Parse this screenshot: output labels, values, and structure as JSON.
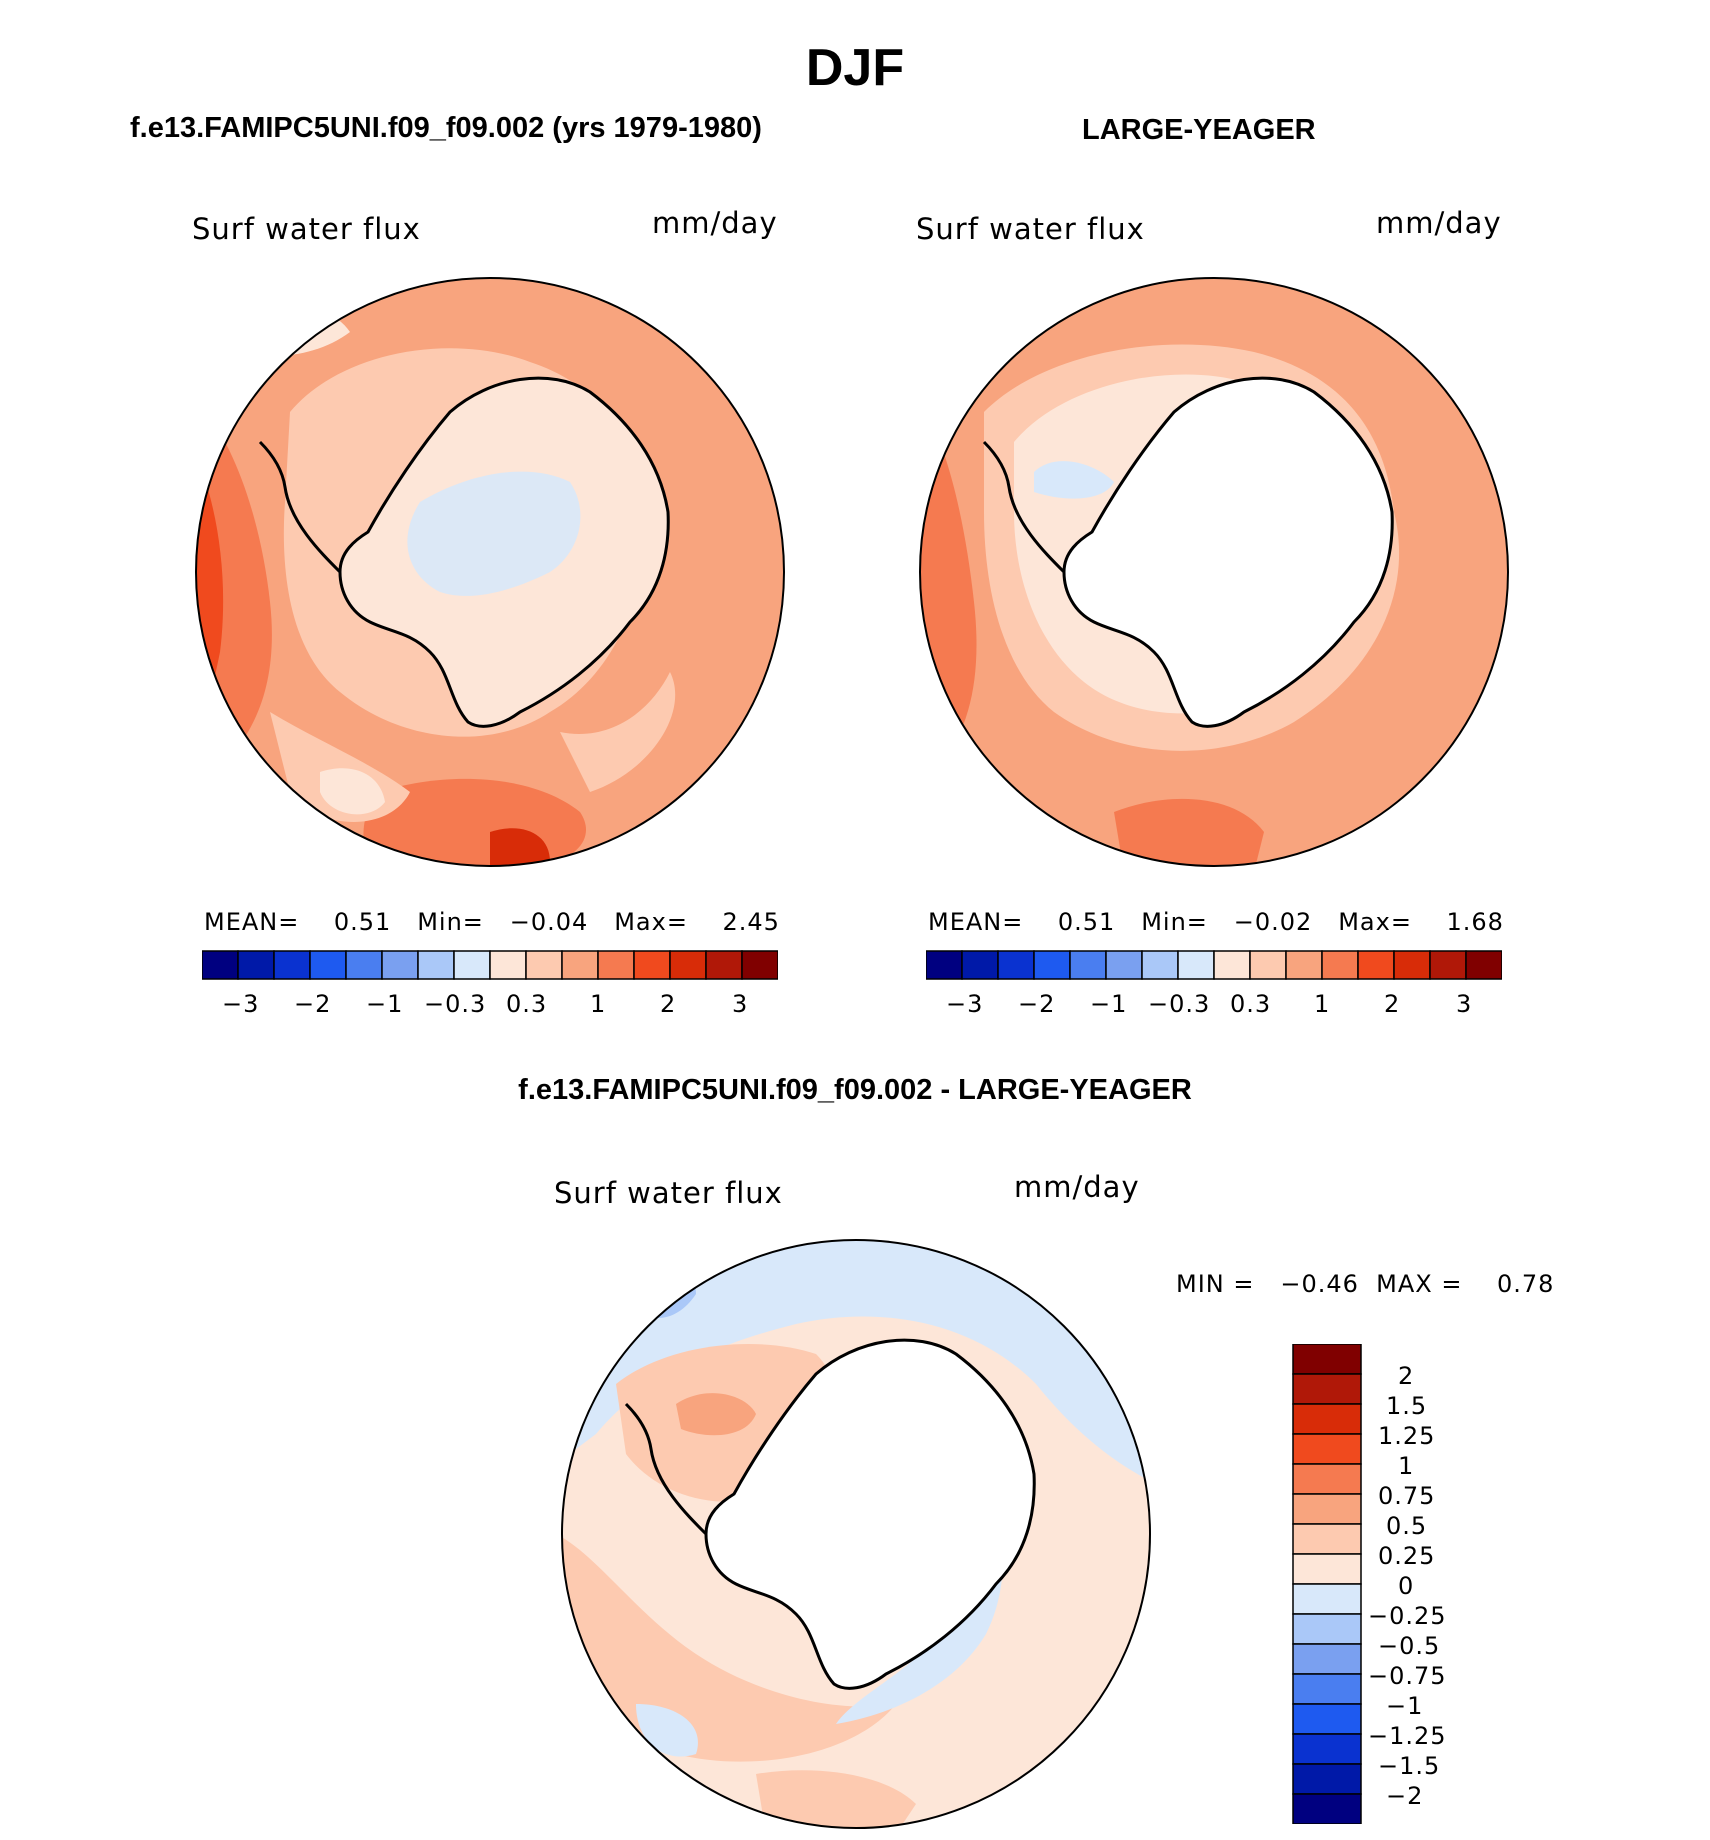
{
  "title": "DJF",
  "colors": {
    "land": "#ffffff",
    "coast": "#000000",
    "scale_abs": [
      "#000080",
      "#0019a8",
      "#0a32d0",
      "#1e5af0",
      "#4a7ef0",
      "#7aa0f0",
      "#aac8f8",
      "#d8e8fa",
      "#fde6d8",
      "#fdcab0",
      "#f8a47e",
      "#f57a50",
      "#f04a1e",
      "#d82c08",
      "#b01808",
      "#800000"
    ],
    "scale_diff": [
      "#000080",
      "#0019a8",
      "#0a32d0",
      "#1e5af0",
      "#4a7ef0",
      "#7aa0f0",
      "#aac8f8",
      "#d8e8fa",
      "#fde6d8",
      "#fdcab0",
      "#f8a47e",
      "#f57a50",
      "#f04a1e",
      "#d82c08",
      "#b01808",
      "#800000"
    ]
  },
  "panels": {
    "model": {
      "title": "f.e13.FAMIPC5UNI.f09_f09.002 (yrs 1979-1980)",
      "variable": "Surf water flux",
      "units": "mm/day",
      "stats": "MEAN=    0.51   Min=   −0.04   Max=    2.45",
      "colorbar_ticks": [
        "−3",
        "−2",
        "−1",
        "−0.3",
        "0.3",
        "1",
        "2",
        "3"
      ]
    },
    "obs": {
      "title": "LARGE-YEAGER",
      "variable": "Surf water flux",
      "units": "mm/day",
      "stats": "MEAN=    0.51   Min=   −0.02   Max=    1.68",
      "colorbar_ticks": [
        "−3",
        "−2",
        "−1",
        "−0.3",
        "0.3",
        "1",
        "2",
        "3"
      ]
    },
    "diff": {
      "title": "f.e13.FAMIPC5UNI.f09_f09.002 - LARGE-YEAGER",
      "variable": "Surf water flux",
      "units": "mm/day",
      "stats": "MIN =   −0.46  MAX =    0.78",
      "colorbar_labels": [
        "2",
        "1.5",
        "1.25",
        "1",
        "0.75",
        "0.5",
        "0.25",
        "0",
        "−0.25",
        "−0.5",
        "−0.75",
        "−1",
        "−1.25",
        "−1.5",
        "−2"
      ]
    }
  }
}
